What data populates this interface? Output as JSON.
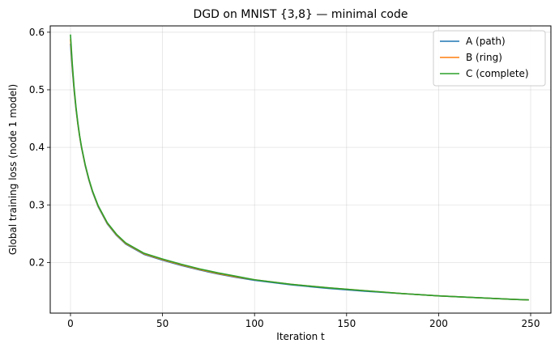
{
  "chart_data": {
    "type": "line",
    "title": "DGD on MNIST {3,8} — minimal code",
    "xlabel": "Iteration t",
    "ylabel": "Global training loss (node 1 model)",
    "xlim": [
      -11,
      261
    ],
    "ylim": [
      0.112,
      0.611
    ],
    "xticks": [
      0,
      50,
      100,
      150,
      200,
      250
    ],
    "yticks": [
      0.2,
      0.3,
      0.4,
      0.5,
      0.6
    ],
    "xtick_labels": [
      "0",
      "50",
      "100",
      "150",
      "200",
      "250"
    ],
    "ytick_labels": [
      "0.2",
      "0.3",
      "0.4",
      "0.5",
      "0.6"
    ],
    "grid": true,
    "legend_position": "top-right",
    "x": [
      0,
      1,
      2,
      3,
      4,
      5,
      6,
      8,
      10,
      12,
      15,
      20,
      25,
      30,
      40,
      50,
      60,
      70,
      80,
      90,
      100,
      120,
      140,
      160,
      180,
      200,
      220,
      240,
      249
    ],
    "series": [
      {
        "name": "A (path)",
        "color": "#1f77b4",
        "values": [
          0.58,
          0.535,
          0.497,
          0.466,
          0.44,
          0.418,
          0.399,
          0.368,
          0.343,
          0.322,
          0.297,
          0.267,
          0.247,
          0.232,
          0.214,
          0.204,
          0.195,
          0.187,
          0.18,
          0.174,
          0.169,
          0.161,
          0.155,
          0.15,
          0.146,
          0.142,
          0.139,
          0.136,
          0.135
        ]
      },
      {
        "name": "B (ring)",
        "color": "#ff7f0e",
        "values": [
          0.588,
          0.54,
          0.5,
          0.468,
          0.441,
          0.419,
          0.4,
          0.369,
          0.344,
          0.323,
          0.298,
          0.268,
          0.248,
          0.233,
          0.215,
          0.205,
          0.196,
          0.188,
          0.181,
          0.175,
          0.17,
          0.162,
          0.156,
          0.151,
          0.146,
          0.142,
          0.139,
          0.136,
          0.135
        ]
      },
      {
        "name": "C (complete)",
        "color": "#2ca02c",
        "values": [
          0.596,
          0.545,
          0.503,
          0.47,
          0.443,
          0.42,
          0.401,
          0.37,
          0.345,
          0.324,
          0.299,
          0.269,
          0.249,
          0.234,
          0.216,
          0.206,
          0.197,
          0.189,
          0.182,
          0.176,
          0.17,
          0.162,
          0.156,
          0.151,
          0.146,
          0.142,
          0.139,
          0.136,
          0.135
        ]
      }
    ]
  }
}
